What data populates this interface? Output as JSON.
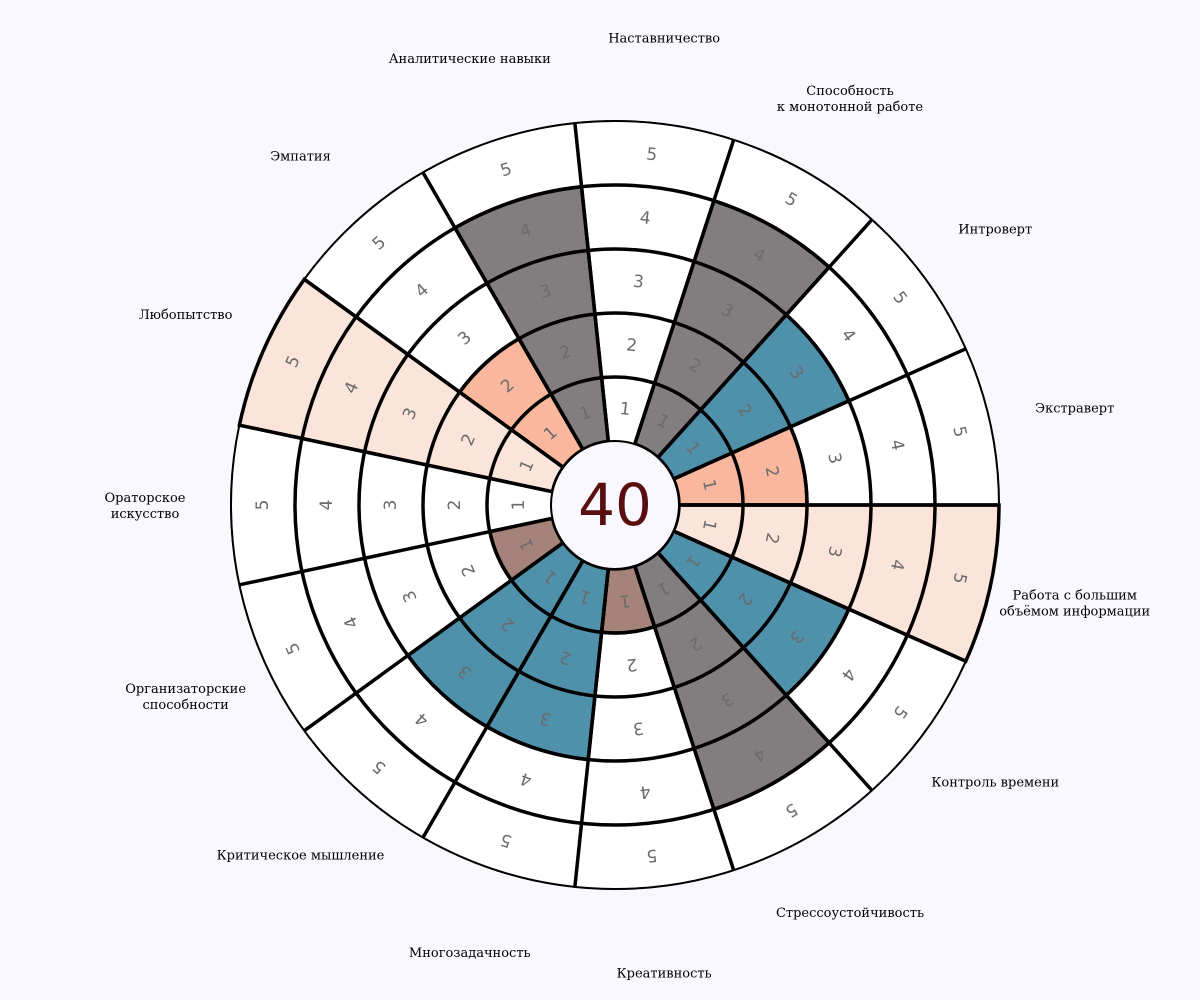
{
  "chart_data": {
    "type": "polar-segmented",
    "center_value": "40",
    "levels": [
      1,
      2,
      3,
      4,
      5
    ],
    "categories": [
      {
        "name": "Работа с большим\nобъёмом информации",
        "value": 5,
        "color": "#fbe4d9"
      },
      {
        "name": "Контроль времени",
        "value": 3,
        "color": "#4f90aa"
      },
      {
        "name": "Стрессоустойчивость",
        "value": 4,
        "color": "#827d7e"
      },
      {
        "name": "Креативность",
        "value": 1,
        "color": "#a6837a"
      },
      {
        "name": "Многозадачность",
        "value": 3,
        "color": "#4f90aa"
      },
      {
        "name": "Критическое мышление",
        "value": 3,
        "color": "#4f90aa"
      },
      {
        "name": "Организаторские\nспособности",
        "value": 1,
        "color": "#a6837a"
      },
      {
        "name": "Ораторское\nискусство",
        "value": 0,
        "color": "#ffffff"
      },
      {
        "name": "Любопытство",
        "value": 5,
        "color": "#fbe4d9"
      },
      {
        "name": "Эмпатия",
        "value": 2,
        "color": "#f9b89e"
      },
      {
        "name": "Аналитические навыки",
        "value": 4,
        "color": "#827d7e"
      },
      {
        "name": "Наставничество",
        "value": 0,
        "color": "#ffffff"
      },
      {
        "name": "Способность\nк монотонной работе",
        "value": 4,
        "color": "#827d7e"
      },
      {
        "name": "Интроверт",
        "value": 3,
        "color": "#4f90aa"
      },
      {
        "name": "Экстраверт",
        "value": 2,
        "color": "#f9b89e"
      }
    ]
  }
}
